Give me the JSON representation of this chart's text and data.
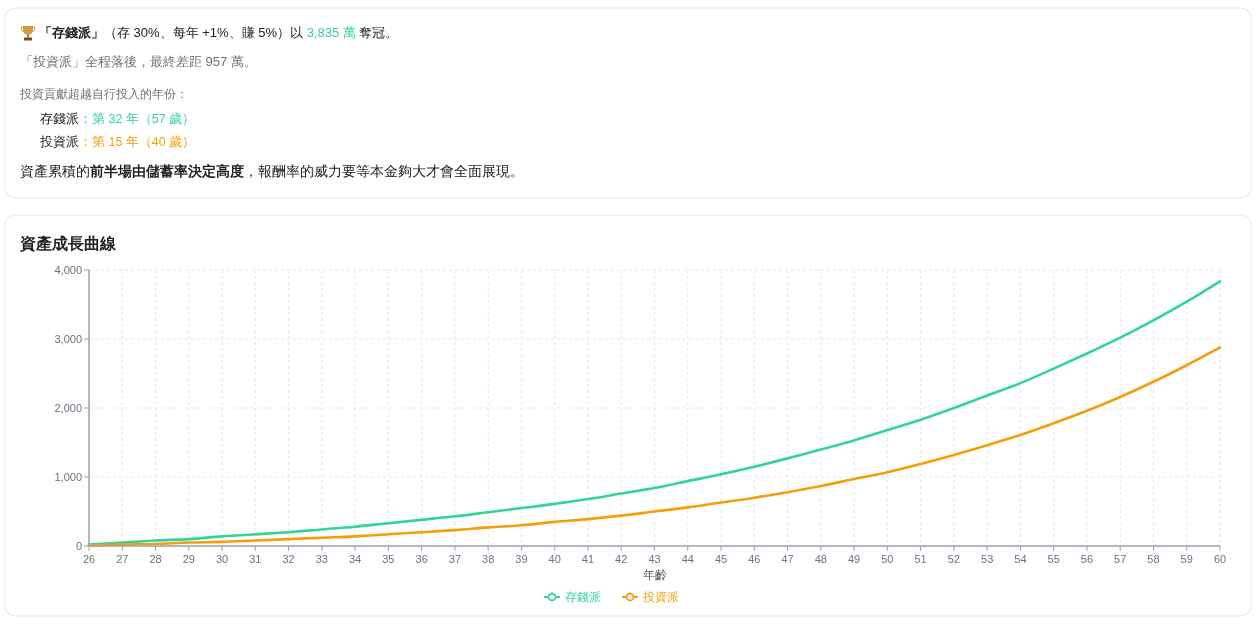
{
  "chart_data": [
    {
      "type": "other",
      "annotations": [
        "「存錢派」",
        "（存 30%、每年 +1%、賺 5%）以 ",
        "3,835 萬",
        " 奪冠。",
        "「投資派」全程落後，最終差距 957 萬。",
        "投資貢獻超越自行投入的年份：",
        "存錢派",
        "：第 32 年（57 歲）",
        "投資派",
        "：第 15 年（40 歲）",
        "資產累積的",
        "前半場由儲蓄率決定高度",
        "，報酬率的威力要等本金夠大才會全面展現。"
      ]
    },
    {
      "type": "line",
      "title": "資產成長曲線",
      "xlabel": "年齡",
      "x": [
        26,
        27,
        28,
        29,
        30,
        31,
        32,
        33,
        34,
        35,
        36,
        37,
        38,
        39,
        40,
        41,
        42,
        43,
        44,
        45,
        46,
        47,
        48,
        49,
        50,
        51,
        52,
        53,
        54,
        55,
        56,
        57,
        58,
        59,
        60
      ],
      "xlim": [
        26,
        60
      ],
      "xticks": [
        26,
        27,
        28,
        29,
        30,
        31,
        32,
        33,
        34,
        35,
        36,
        37,
        38,
        39,
        40,
        41,
        42,
        43,
        44,
        45,
        46,
        47,
        48,
        49,
        50,
        51,
        52,
        53,
        54,
        55,
        56,
        57,
        58,
        59,
        60
      ],
      "ylim": [
        0,
        4000
      ],
      "yticks": [
        0,
        {
          "value": 1000,
          "label": "1,000"
        },
        {
          "value": 2000,
          "label": "2,000"
        },
        {
          "value": 3000,
          "label": "3,000"
        },
        {
          "value": 4000,
          "label": "4,000"
        }
      ],
      "grid": true,
      "legend": "bottom",
      "marker": "none",
      "series": [
        {
          "name": "存錢派",
          "color": "#34d399",
          "values": [
            20,
            50,
            80,
            100,
            140,
            170,
            200,
            240,
            280,
            330,
            380,
            430,
            490,
            550,
            610,
            680,
            760,
            840,
            940,
            1040,
            1150,
            1270,
            1400,
            1530,
            1680,
            1830,
            2000,
            2180,
            2360,
            2570,
            2790,
            3020,
            3270,
            3540,
            3835
          ]
        },
        {
          "name": "投資派",
          "color": "#f59e0b",
          "values": [
            10,
            20,
            30,
            50,
            60,
            80,
            100,
            120,
            140,
            170,
            200,
            230,
            270,
            300,
            350,
            390,
            440,
            500,
            560,
            630,
            700,
            780,
            870,
            970,
            1070,
            1190,
            1320,
            1460,
            1610,
            1780,
            1960,
            2160,
            2380,
            2620,
            2878
          ]
        }
      ]
    }
  ]
}
